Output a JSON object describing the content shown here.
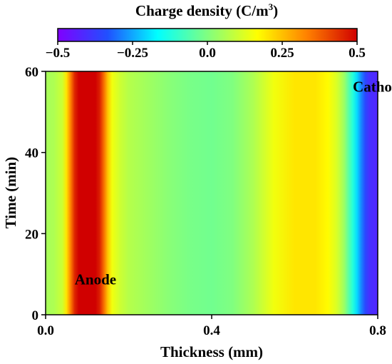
{
  "chart_data": {
    "type": "heatmap",
    "colorbar": {
      "title_main": "Charge density (C/m",
      "title_sup": "3",
      "title_end": ")",
      "range": [
        -0.5,
        0.5
      ],
      "ticks": [
        -0.5,
        -0.25,
        0.0,
        0.25,
        0.5
      ],
      "tick_labels": [
        "−0.5",
        "−0.25",
        "0.0",
        "0.25",
        "0.5"
      ],
      "colormap": [
        "#8000ff",
        "#2050ff",
        "#00ffff",
        "#80ff80",
        "#ffff00",
        "#ff8000",
        "#d00000"
      ]
    },
    "xlabel": "Thickness (mm)",
    "ylabel": "Time (min)",
    "xlim": [
      0.0,
      0.8
    ],
    "ylim": [
      0,
      60
    ],
    "xticks": [
      0.0,
      0.4,
      0.8
    ],
    "xtick_labels": [
      "0.0",
      "0.4",
      "0.8"
    ],
    "yticks": [
      0,
      20,
      40,
      60
    ],
    "ytick_labels": [
      "0",
      "20",
      "40",
      "60"
    ],
    "profile": {
      "x": [
        0.0,
        0.02,
        0.04,
        0.05,
        0.06,
        0.07,
        0.08,
        0.1,
        0.12,
        0.13,
        0.14,
        0.15,
        0.16,
        0.18,
        0.2,
        0.25,
        0.3,
        0.35,
        0.4,
        0.45,
        0.5,
        0.55,
        0.6,
        0.65,
        0.68,
        0.7,
        0.71,
        0.72,
        0.73,
        0.74,
        0.75,
        0.76,
        0.77,
        0.78,
        0.8
      ],
      "value": [
        0.05,
        0.06,
        0.1,
        0.2,
        0.33,
        0.45,
        0.5,
        0.5,
        0.5,
        0.46,
        0.36,
        0.24,
        0.15,
        0.1,
        0.07,
        0.04,
        0.01,
        -0.01,
        -0.02,
        0.0,
        0.06,
        0.15,
        0.2,
        0.2,
        0.17,
        0.12,
        0.08,
        0.03,
        -0.05,
        -0.12,
        -0.2,
        -0.28,
        -0.35,
        -0.4,
        -0.42
      ]
    },
    "annotations": [
      {
        "text": "Anode",
        "x": 0.07,
        "y": 7.5
      },
      {
        "text": "Cathode",
        "x": 0.74,
        "y": 55
      }
    ]
  }
}
